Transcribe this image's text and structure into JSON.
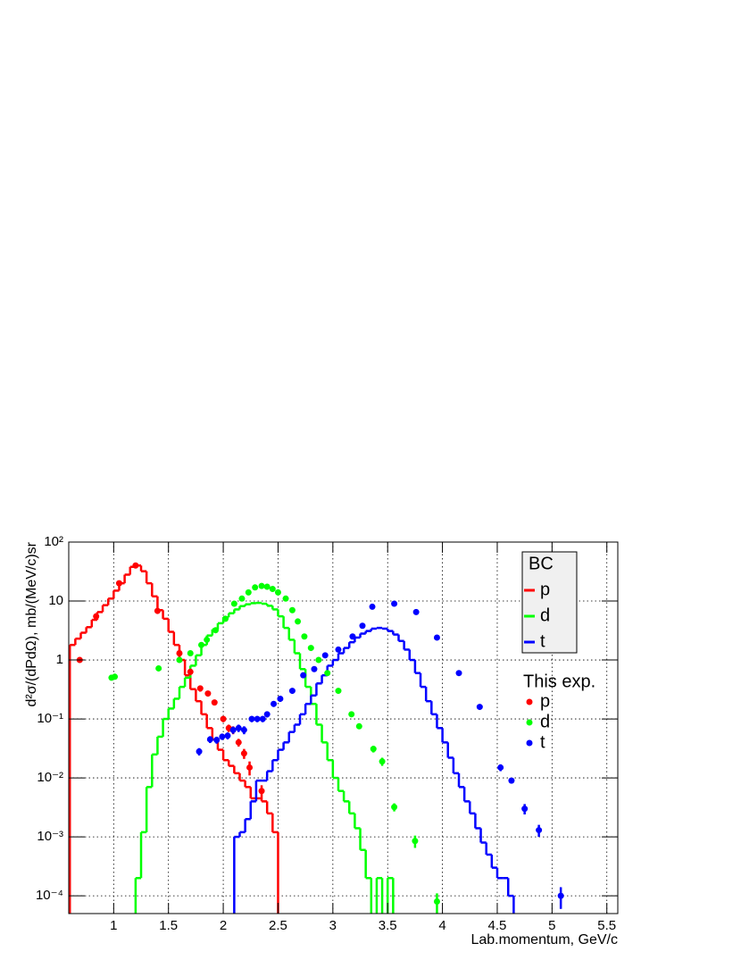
{
  "chart_data": {
    "type": "histogram",
    "x_label": "Lab.momentum, GeV/c",
    "y_label": "d²σ/(dPdΩ), mb/(MeV/c)sr",
    "log_y": true,
    "grid": true,
    "xlim": [
      0.59,
      5.6
    ],
    "ylim": [
      5e-05,
      100
    ],
    "xticks": [
      1,
      1.5,
      2,
      2.5,
      3,
      3.5,
      4,
      4.5,
      5,
      5.5
    ],
    "yticks": [
      {
        "value": 0.0001,
        "label": "10⁻⁴"
      },
      {
        "value": 0.001,
        "label": "10⁻³"
      },
      {
        "value": 0.01,
        "label": "10⁻²"
      },
      {
        "value": 0.1,
        "label": "10⁻¹"
      },
      1,
      10,
      {
        "value": 100,
        "label": "10²"
      }
    ],
    "series_groups": [
      {
        "title": "BC",
        "type": "histogram",
        "series": [
          {
            "name": "p",
            "color": "#ff0000",
            "bins": [
              0.6,
              0.65,
              0.7,
              0.75,
              0.8,
              0.85,
              0.9,
              0.95,
              1.0,
              1.05,
              1.1,
              1.15,
              1.2,
              1.25,
              1.3,
              1.35,
              1.4,
              1.45,
              1.5,
              1.55,
              1.6,
              1.65,
              1.7,
              1.75,
              1.8,
              1.85,
              1.9,
              1.95,
              2.0,
              2.05,
              2.1,
              2.15,
              2.2,
              2.25,
              2.3,
              2.35,
              2.4,
              2.45,
              2.5
            ],
            "values": [
              1.8,
              2.3,
              2.9,
              3.6,
              4.8,
              6.5,
              8.5,
              11,
              15,
              20,
              28,
              38,
              40,
              32,
              20,
              12,
              7,
              5,
              3,
              1.8,
              1.0,
              0.55,
              0.32,
              0.2,
              0.12,
              0.07,
              0.045,
              0.03,
              0.02,
              0.016,
              0.012,
              0.009,
              0.007,
              0.0045,
              0.0045,
              0.004,
              0.0025,
              0.0012
            ]
          },
          {
            "name": "d",
            "color": "#00ff00",
            "bins": [
              1.2,
              1.25,
              1.3,
              1.35,
              1.4,
              1.45,
              1.5,
              1.55,
              1.6,
              1.65,
              1.7,
              1.75,
              1.8,
              1.85,
              1.9,
              1.95,
              2.0,
              2.05,
              2.1,
              2.15,
              2.2,
              2.25,
              2.3,
              2.35,
              2.4,
              2.45,
              2.5,
              2.55,
              2.6,
              2.65,
              2.7,
              2.75,
              2.8,
              2.85,
              2.9,
              2.95,
              3.0,
              3.05,
              3.1,
              3.15,
              3.2,
              3.25,
              3.3,
              3.35,
              3.4,
              3.45,
              3.5,
              3.55
            ],
            "values": [
              0.0002,
              0.0012,
              0.007,
              0.025,
              0.05,
              0.1,
              0.15,
              0.22,
              0.35,
              0.5,
              0.8,
              1.2,
              1.8,
              2.6,
              3.3,
              4.2,
              5.3,
              6.2,
              7.2,
              8.2,
              8.8,
              9.2,
              9.3,
              9,
              8.3,
              7.2,
              5.5,
              3.5,
              2.2,
              1.3,
              0.7,
              0.35,
              0.18,
              0.08,
              0.04,
              0.02,
              0.01,
              0.006,
              0.004,
              0.0025,
              0.0014,
              0.0006,
              0.0002,
              0,
              0.0002,
              0,
              0.0002
            ]
          },
          {
            "name": "t",
            "color": "#0000ff",
            "bins": [
              1.7,
              1.75,
              1.8,
              1.85,
              1.9,
              1.95,
              2.0,
              2.05,
              2.1,
              2.15,
              2.2,
              2.25,
              2.3,
              2.35,
              2.4,
              2.45,
              2.5,
              2.55,
              2.6,
              2.65,
              2.7,
              2.75,
              2.8,
              2.85,
              2.9,
              2.95,
              3.0,
              3.05,
              3.1,
              3.15,
              3.2,
              3.25,
              3.3,
              3.35,
              3.4,
              3.45,
              3.5,
              3.55,
              3.6,
              3.65,
              3.7,
              3.75,
              3.8,
              3.85,
              3.9,
              3.95,
              4.0,
              4.05,
              4.1,
              4.15,
              4.2,
              4.25,
              4.3,
              4.35,
              4.4,
              4.45,
              4.5,
              4.55,
              4.6,
              4.65,
              4.7,
              4.75,
              4.8,
              4.85
            ],
            "values": [
              0,
              0,
              0,
              0,
              0,
              0,
              0,
              0,
              0.001,
              0.0012,
              0.002,
              0.004,
              0.009,
              0.009,
              0.013,
              0.02,
              0.03,
              0.04,
              0.06,
              0.08,
              0.12,
              0.18,
              0.25,
              0.4,
              0.55,
              0.8,
              1.0,
              1.3,
              1.6,
              2.0,
              2.4,
              2.8,
              3.1,
              3.4,
              3.5,
              3.4,
              3.1,
              2.7,
              2.1,
              1.5,
              1.0,
              0.6,
              0.35,
              0.2,
              0.12,
              0.07,
              0.04,
              0.022,
              0.012,
              0.007,
              0.004,
              0.0025,
              0.0014,
              0.0008,
              0.0005,
              0.0003,
              0.0002,
              0.0002,
              0.0001,
              0,
              0,
              0,
              0
            ]
          }
        ]
      },
      {
        "title": "This exp.",
        "type": "scatter",
        "series": [
          {
            "name": "p",
            "color": "#ff0000",
            "x": [
              0.69,
              0.84,
              1.05,
              1.2,
              1.4,
              1.6,
              1.7,
              1.79,
              1.86,
              1.92,
              2.0,
              2.05,
              2.09,
              2.14,
              2.19,
              2.24,
              2.35
            ],
            "values": [
              1.0,
              5.5,
              20,
              40,
              6.8,
              1.3,
              0.63,
              0.33,
              0.27,
              0.19,
              0.1,
              0.07,
              0.065,
              0.04,
              0.026,
              0.015,
              0.006
            ],
            "errors": [
              0.1,
              0.6,
              2,
              4,
              0.7,
              0.2,
              0.08,
              0.04,
              0.03,
              0.02,
              0.012,
              0.01,
              0.01,
              0.006,
              0.005,
              0.004,
              0.0015
            ]
          },
          {
            "name": "d",
            "color": "#00ff00",
            "x": [
              0.98,
              1.01,
              1.41,
              1.6,
              1.7,
              1.8,
              1.85,
              1.93,
              2.02,
              2.1,
              2.17,
              2.23,
              2.29,
              2.35,
              2.4,
              2.45,
              2.5,
              2.57,
              2.63,
              2.68,
              2.74,
              2.8,
              2.87,
              2.95,
              3.05,
              3.17,
              3.24,
              3.37,
              3.45,
              3.56,
              3.75,
              3.95
            ],
            "values": [
              0.5,
              0.52,
              0.72,
              1.0,
              1.3,
              1.8,
              2.2,
              3.2,
              5.0,
              9.0,
              11,
              14,
              17,
              18,
              17.5,
              16,
              14,
              11,
              7,
              4.5,
              2.5,
              1.6,
              1.0,
              0.6,
              0.3,
              0.12,
              0.075,
              0.031,
              0.019,
              0.0032,
              0.00085,
              8e-05
            ],
            "errors": [
              0.05,
              0.05,
              0.07,
              0.1,
              0.13,
              0.18,
              0.2,
              0.3,
              0.4,
              0.6,
              0.7,
              0.8,
              0.9,
              0.9,
              0.9,
              0.8,
              0.7,
              0.6,
              0.4,
              0.3,
              0.15,
              0.1,
              0.06,
              0.04,
              0.02,
              0.01,
              0.007,
              0.004,
              0.003,
              0.0005,
              0.0002,
              3e-05
            ]
          },
          {
            "name": "t",
            "color": "#0000ff",
            "x": [
              1.78,
              1.88,
              1.94,
              1.99,
              2.04,
              2.09,
              2.14,
              2.19,
              2.26,
              2.31,
              2.36,
              2.4,
              2.46,
              2.52,
              2.63,
              2.73,
              2.83,
              2.93,
              3.05,
              3.18,
              3.27,
              3.36,
              3.56,
              3.76,
              3.95,
              4.15,
              4.34,
              4.53,
              4.63,
              4.75,
              4.88,
              5.08
            ],
            "values": [
              0.028,
              0.045,
              0.044,
              0.05,
              0.052,
              0.065,
              0.07,
              0.065,
              0.1,
              0.1,
              0.1,
              0.12,
              0.18,
              0.22,
              0.3,
              0.55,
              0.7,
              1.2,
              1.5,
              2.5,
              3.8,
              8,
              9,
              6.5,
              2.4,
              0.6,
              0.16,
              0.015,
              0.009,
              0.003,
              0.0013,
              0.0001
            ],
            "errors": [
              0.004,
              0.006,
              0.006,
              0.006,
              0.007,
              0.009,
              0.01,
              0.01,
              0.012,
              0.012,
              0.012,
              0.014,
              0.02,
              0.025,
              0.03,
              0.05,
              0.06,
              0.1,
              0.12,
              0.2,
              0.3,
              0.5,
              0.5,
              0.4,
              0.15,
              0.05,
              0.012,
              0.002,
              0.001,
              0.0006,
              0.0003,
              4e-05
            ]
          }
        ]
      }
    ]
  }
}
